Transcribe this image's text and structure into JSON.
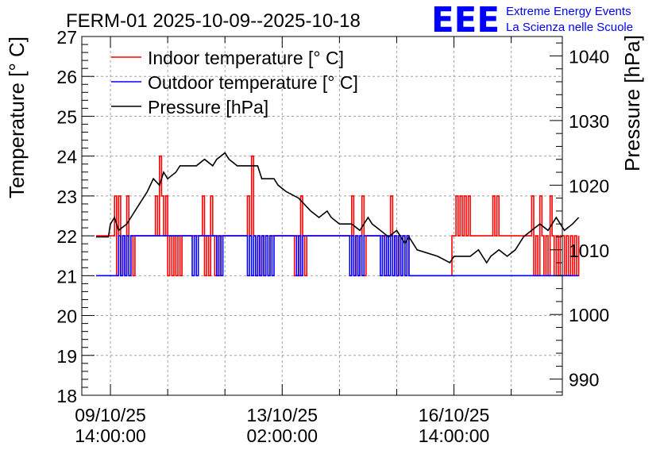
{
  "chart_data": {
    "type": "line",
    "title": "FERM-01 2025-10-09--2025-10-18",
    "ylabel_left": "Temperature [° C]",
    "ylabel_right": "Pressure [hPa]",
    "ylim_left": [
      18,
      27
    ],
    "ylim_right": [
      987.5,
      1043
    ],
    "left_ticks": [
      "18",
      "19",
      "20",
      "21",
      "22",
      "23",
      "24",
      "25",
      "26",
      "27"
    ],
    "right_ticks": [
      "990",
      "1000",
      "1010",
      "1020",
      "1030",
      "1040"
    ],
    "x_range_hours": [
      -8,
      227
    ],
    "x_ticks": [
      {
        "hour": 6,
        "label_date": "09/10/25",
        "label_time": "14:00:00"
      },
      {
        "hour": 90,
        "label_date": "13/10/25",
        "label_time": "02:00:00"
      },
      {
        "hour": 174,
        "label_date": "16/10/25",
        "label_time": "14:00:00"
      }
    ],
    "grid": true,
    "legend_position": "top-left",
    "series": [
      {
        "name": "Indoor temperature [° C]",
        "color": "#ff0000",
        "axis": "left",
        "style": "step",
        "points": [
          [
            -1,
            22
          ],
          [
            7,
            22
          ],
          [
            8,
            23
          ],
          [
            9,
            21
          ],
          [
            10,
            23
          ],
          [
            11,
            21
          ],
          [
            12,
            22
          ],
          [
            13,
            21
          ],
          [
            14,
            23
          ],
          [
            15,
            21
          ],
          [
            16,
            22
          ],
          [
            17,
            21
          ],
          [
            18,
            22
          ],
          [
            27,
            22
          ],
          [
            28,
            23
          ],
          [
            29,
            22
          ],
          [
            30,
            24
          ],
          [
            31,
            23
          ],
          [
            32,
            22
          ],
          [
            33,
            23
          ],
          [
            34,
            21
          ],
          [
            35,
            22
          ],
          [
            36,
            21
          ],
          [
            37,
            22
          ],
          [
            38,
            21
          ],
          [
            39,
            22
          ],
          [
            40,
            21
          ],
          [
            41,
            22
          ],
          [
            50,
            22
          ],
          [
            51,
            23
          ],
          [
            52,
            21
          ],
          [
            53,
            22
          ],
          [
            54,
            21
          ],
          [
            55,
            23
          ],
          [
            56,
            22
          ],
          [
            57,
            21
          ],
          [
            58,
            22
          ],
          [
            59,
            21
          ],
          [
            60,
            22
          ],
          [
            72,
            22
          ],
          [
            73,
            23
          ],
          [
            74,
            22
          ],
          [
            75,
            24
          ],
          [
            76,
            22
          ],
          [
            77,
            21
          ],
          [
            78,
            22
          ],
          [
            79,
            21
          ],
          [
            80,
            22
          ],
          [
            81,
            21
          ],
          [
            82,
            22
          ],
          [
            83,
            21
          ],
          [
            84,
            22
          ],
          [
            95,
            22
          ],
          [
            96,
            21
          ],
          [
            97,
            22
          ],
          [
            98,
            21
          ],
          [
            99,
            23
          ],
          [
            100,
            22
          ],
          [
            101,
            21
          ],
          [
            102,
            22
          ],
          [
            123,
            22
          ],
          [
            124,
            23
          ],
          [
            125,
            21
          ],
          [
            126,
            22
          ],
          [
            127,
            21
          ],
          [
            128,
            22
          ],
          [
            129,
            23
          ],
          [
            130,
            21
          ],
          [
            131,
            22
          ],
          [
            140,
            22
          ],
          [
            141,
            21
          ],
          [
            142,
            22
          ],
          [
            143,
            23
          ],
          [
            144,
            21
          ],
          [
            145,
            22
          ],
          [
            146,
            21
          ],
          [
            147,
            22
          ],
          [
            148,
            21
          ],
          [
            149,
            22
          ],
          [
            150,
            21
          ],
          [
            151,
            22
          ],
          [
            152,
            21
          ],
          [
            154,
            21
          ],
          [
            173,
            22
          ],
          [
            174,
            22
          ],
          [
            175,
            23
          ],
          [
            176,
            22
          ],
          [
            177,
            23
          ],
          [
            178,
            22
          ],
          [
            179,
            23
          ],
          [
            180,
            22
          ],
          [
            181,
            23
          ],
          [
            182,
            22
          ],
          [
            192,
            22
          ],
          [
            193,
            23
          ],
          [
            194,
            22
          ],
          [
            195,
            23
          ],
          [
            196,
            22
          ],
          [
            211,
            22
          ],
          [
            212,
            23
          ],
          [
            213,
            21
          ],
          [
            214,
            22
          ],
          [
            215,
            21
          ],
          [
            216,
            23
          ],
          [
            217,
            22
          ],
          [
            218,
            21
          ],
          [
            219,
            22
          ],
          [
            220,
            21
          ],
          [
            221,
            23
          ],
          [
            222,
            22
          ],
          [
            223,
            21
          ],
          [
            224,
            22
          ],
          [
            225,
            21
          ],
          [
            226,
            22
          ],
          [
            227,
            22
          ],
          [
            228,
            21
          ],
          [
            229,
            22
          ],
          [
            230,
            21
          ],
          [
            231,
            22
          ],
          [
            232,
            21
          ],
          [
            233,
            22
          ],
          [
            234,
            21
          ],
          [
            235,
            22
          ]
        ]
      },
      {
        "name": "Outdoor temperature [° C]",
        "color": "#0000ff",
        "axis": "left",
        "style": "step",
        "points": [
          [
            -1,
            21
          ],
          [
            9,
            21
          ],
          [
            10,
            22
          ],
          [
            11,
            21
          ],
          [
            12,
            22
          ],
          [
            13,
            21
          ],
          [
            14,
            22
          ],
          [
            15,
            21
          ],
          [
            16,
            22
          ],
          [
            45,
            22
          ],
          [
            46,
            21
          ],
          [
            47,
            22
          ],
          [
            48,
            21
          ],
          [
            49,
            22
          ],
          [
            57,
            22
          ],
          [
            58,
            21
          ],
          [
            59,
            22
          ],
          [
            60,
            21
          ],
          [
            61,
            22
          ],
          [
            72,
            22
          ],
          [
            73,
            21
          ],
          [
            74,
            22
          ],
          [
            75,
            21
          ],
          [
            76,
            22
          ],
          [
            77,
            21
          ],
          [
            78,
            22
          ],
          [
            79,
            21
          ],
          [
            80,
            22
          ],
          [
            81,
            21
          ],
          [
            82,
            22
          ],
          [
            83,
            21
          ],
          [
            84,
            22
          ],
          [
            85,
            21
          ],
          [
            86,
            22
          ],
          [
            96,
            22
          ],
          [
            97,
            21
          ],
          [
            98,
            22
          ],
          [
            99,
            21
          ],
          [
            100,
            22
          ],
          [
            122,
            22
          ],
          [
            123,
            21
          ],
          [
            124,
            22
          ],
          [
            125,
            21
          ],
          [
            126,
            22
          ],
          [
            127,
            21
          ],
          [
            128,
            22
          ],
          [
            129,
            21
          ],
          [
            130,
            22
          ],
          [
            137,
            22
          ],
          [
            138,
            21
          ],
          [
            139,
            22
          ],
          [
            140,
            21
          ],
          [
            141,
            22
          ],
          [
            142,
            21
          ],
          [
            143,
            22
          ],
          [
            144,
            21
          ],
          [
            145,
            22
          ],
          [
            146,
            21
          ],
          [
            147,
            22
          ],
          [
            148,
            21
          ],
          [
            149,
            22
          ],
          [
            150,
            21
          ],
          [
            151,
            22
          ],
          [
            152,
            21
          ],
          [
            235,
            21
          ]
        ]
      },
      {
        "name": "Pressure [hPa]",
        "color": "#000000",
        "axis": "right",
        "style": "line",
        "points": [
          [
            -1,
            1012
          ],
          [
            5,
            1012
          ],
          [
            6,
            1014
          ],
          [
            8,
            1015
          ],
          [
            10,
            1013
          ],
          [
            14,
            1014
          ],
          [
            16,
            1015
          ],
          [
            20,
            1017
          ],
          [
            24,
            1019
          ],
          [
            27,
            1021
          ],
          [
            30,
            1020
          ],
          [
            32,
            1022
          ],
          [
            34,
            1021
          ],
          [
            38,
            1022
          ],
          [
            40,
            1023
          ],
          [
            48,
            1023
          ],
          [
            52,
            1024
          ],
          [
            56,
            1023
          ],
          [
            58,
            1024
          ],
          [
            62,
            1025
          ],
          [
            64,
            1024
          ],
          [
            68,
            1023
          ],
          [
            78,
            1023
          ],
          [
            80,
            1021
          ],
          [
            86,
            1021
          ],
          [
            88,
            1020
          ],
          [
            92,
            1019
          ],
          [
            98,
            1018
          ],
          [
            104,
            1016
          ],
          [
            108,
            1015
          ],
          [
            112,
            1016
          ],
          [
            114,
            1015
          ],
          [
            118,
            1014
          ],
          [
            124,
            1014
          ],
          [
            128,
            1013
          ],
          [
            132,
            1015
          ],
          [
            134,
            1014
          ],
          [
            138,
            1013
          ],
          [
            142,
            1012
          ],
          [
            146,
            1013
          ],
          [
            150,
            1011
          ],
          [
            152,
            1012
          ],
          [
            156,
            1010
          ],
          [
            166,
            1009
          ],
          [
            172,
            1008
          ],
          [
            174,
            1009
          ],
          [
            182,
            1009
          ],
          [
            186,
            1010
          ],
          [
            190,
            1008
          ],
          [
            192,
            1009
          ],
          [
            196,
            1010
          ],
          [
            200,
            1009
          ],
          [
            204,
            1010
          ],
          [
            208,
            1012
          ],
          [
            212,
            1013
          ],
          [
            216,
            1014
          ],
          [
            220,
            1013
          ],
          [
            224,
            1015
          ],
          [
            228,
            1013
          ],
          [
            232,
            1014
          ],
          [
            235,
            1015
          ]
        ]
      }
    ]
  },
  "branding": {
    "logo_text": "EEE",
    "line1": "Extreme Energy Events",
    "line2": "La Scienza nelle Scuole"
  }
}
